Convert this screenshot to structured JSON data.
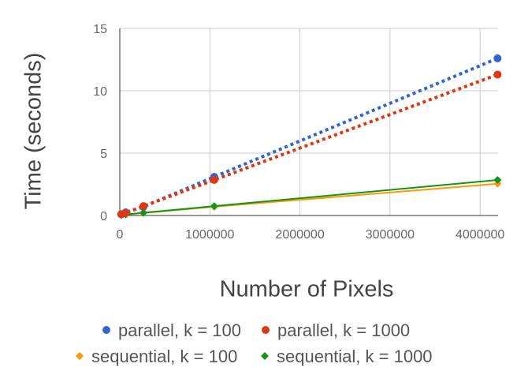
{
  "chart_data": {
    "type": "line",
    "title": "",
    "xlabel": "Number of Pixels",
    "ylabel": "Time (seconds)",
    "xlim": [
      0,
      4200000
    ],
    "ylim": [
      0,
      15
    ],
    "xticks": [
      0,
      1000000,
      2000000,
      3000000,
      4000000
    ],
    "yticks": [
      0,
      5,
      10,
      15
    ],
    "xtick_labels": [
      "0",
      "1000000",
      "2000000",
      "3000000",
      "4000000"
    ],
    "ytick_labels": [
      "0",
      "5",
      "10",
      "15"
    ],
    "grid": true,
    "legend_position": "bottom",
    "series": [
      {
        "name": "parallel, k = 100",
        "color": "#3366cc",
        "line": "dotted",
        "marker": "circle",
        "x": [
          16384,
          65536,
          262144,
          1048576,
          4194304
        ],
        "y": [
          0.1,
          0.25,
          0.7,
          3.1,
          12.6
        ]
      },
      {
        "name": "parallel, k = 1000",
        "color": "#dc3912",
        "line": "dotted",
        "marker": "circle",
        "x": [
          16384,
          65536,
          262144,
          1048576,
          4194304
        ],
        "y": [
          0.1,
          0.2,
          0.75,
          2.85,
          11.3
        ]
      },
      {
        "name": "sequential, k = 100",
        "color": "#ff9900",
        "line": "solid",
        "marker": "diamond",
        "x": [
          16384,
          65536,
          262144,
          1048576,
          4194304
        ],
        "y": [
          0.05,
          0.08,
          0.2,
          0.7,
          2.55
        ]
      },
      {
        "name": "sequential, k = 1000",
        "color": "#109618",
        "line": "solid",
        "marker": "diamond",
        "x": [
          16384,
          65536,
          262144,
          1048576,
          4194304
        ],
        "y": [
          0.05,
          0.08,
          0.22,
          0.75,
          2.85
        ]
      }
    ]
  }
}
